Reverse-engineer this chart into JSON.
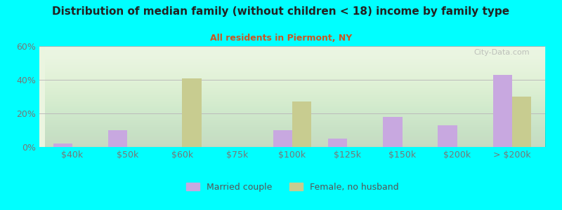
{
  "title": "Distribution of median family (without children < 18) income by family type",
  "subtitle": "All residents in Piermont, NY",
  "categories": [
    "$40k",
    "$50k",
    "$60k",
    "$75k",
    "$100k",
    "$125k",
    "$150k",
    "$200k",
    "> $200k"
  ],
  "married_couple": [
    2,
    10,
    0,
    0,
    10,
    5,
    18,
    13,
    43
  ],
  "female_no_husband": [
    0,
    0,
    41,
    0,
    27,
    0,
    0,
    0,
    30
  ],
  "married_color": "#c8a8e0",
  "female_color": "#c8cc90",
  "bg_color": "#00ffff",
  "plot_bg_top": "#f0fff0",
  "plot_bg_bottom": "#e8ffe8",
  "title_color": "#222222",
  "subtitle_color": "#cc5522",
  "axis_color": "#777777",
  "tick_color": "#777777",
  "ylim": [
    0,
    60
  ],
  "yticks": [
    0,
    20,
    40,
    60
  ],
  "bar_width": 0.35,
  "legend_married": "Married couple",
  "legend_female": "Female, no husband",
  "watermark": "City-Data.com"
}
